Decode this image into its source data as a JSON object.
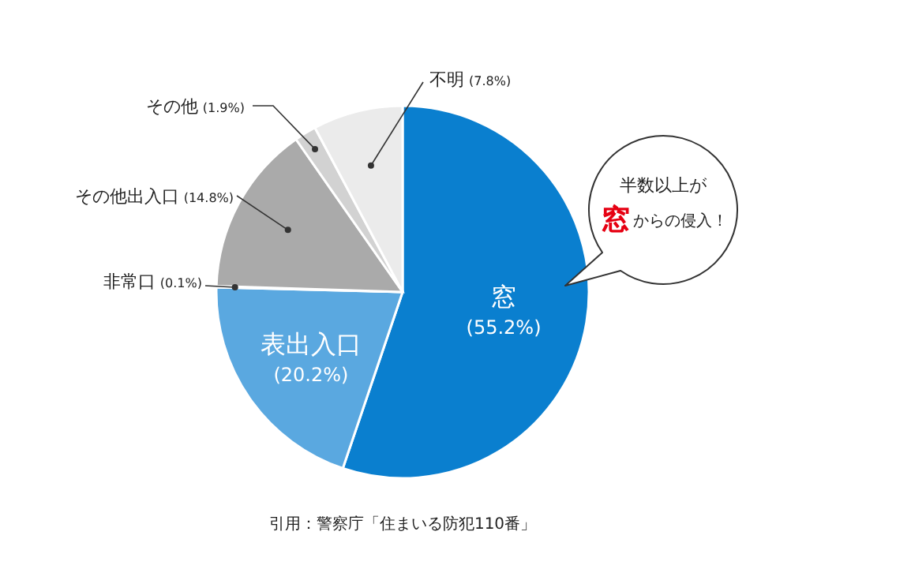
{
  "chart_data": {
    "type": "pie",
    "categories": [
      "窓",
      "表出入口",
      "非常口",
      "その他出入口",
      "その他",
      "不明"
    ],
    "values": [
      55.2,
      20.2,
      0.1,
      14.8,
      1.9,
      7.8
    ],
    "colors": [
      "#0a7fcf",
      "#5aa8e0",
      "#f4f4f4",
      "#aaaaaa",
      "#d2d2d2",
      "#ebebeb"
    ],
    "value_labels": [
      "(55.2%)",
      "(20.2%)",
      "(0.1%)",
      "(14.8%)",
      "(1.9%)",
      "(7.8%)"
    ],
    "annotations": [
      "半数以上が",
      "窓",
      "からの侵入！",
      "引用：警察庁「住まいる防犯110番」"
    ]
  }
}
